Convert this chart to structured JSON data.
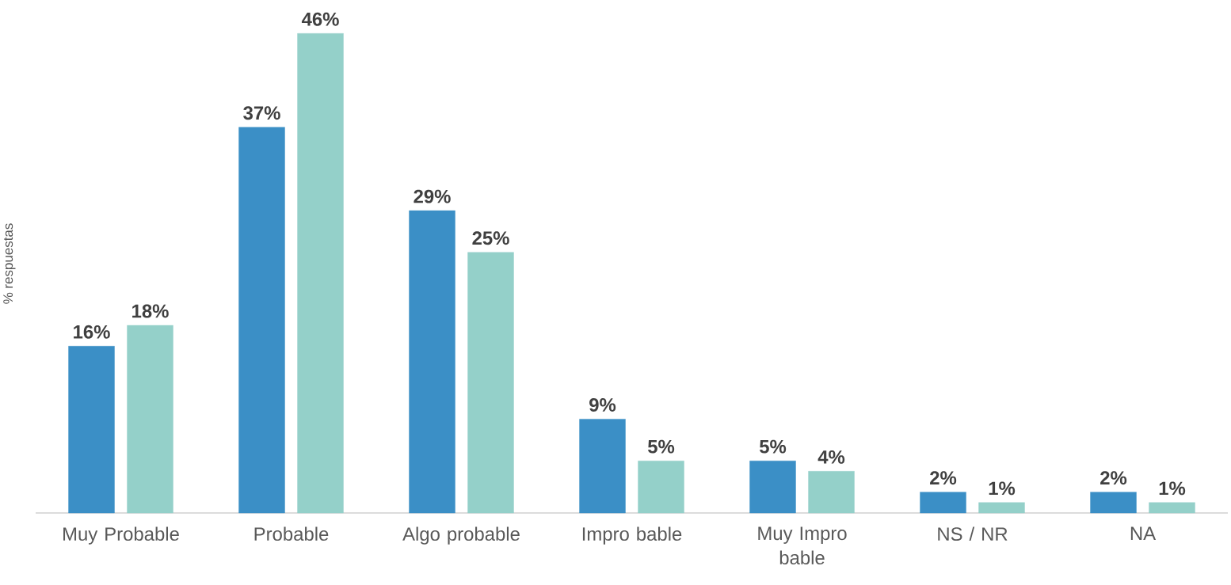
{
  "chart_data": {
    "type": "bar",
    "ylabel": "% respuestas",
    "categories": [
      "Muy Probable",
      "Probable",
      "Algo probable",
      "Impro bable",
      "Muy Impro bable",
      "NS / NR",
      "NA"
    ],
    "series": [
      {
        "color": "#3b8fc6",
        "values": [
          16,
          37,
          29,
          9,
          5,
          2,
          2
        ],
        "value_labels": [
          "16%",
          "37%",
          "29%",
          "9%",
          "5%",
          "2%",
          "2%"
        ]
      },
      {
        "color": "#94d0c9",
        "values": [
          18,
          46,
          25,
          5,
          4,
          1,
          1
        ],
        "value_labels": [
          "18%",
          "46%",
          "25%",
          "5%",
          "4%",
          "1%",
          "1%"
        ]
      }
    ]
  }
}
